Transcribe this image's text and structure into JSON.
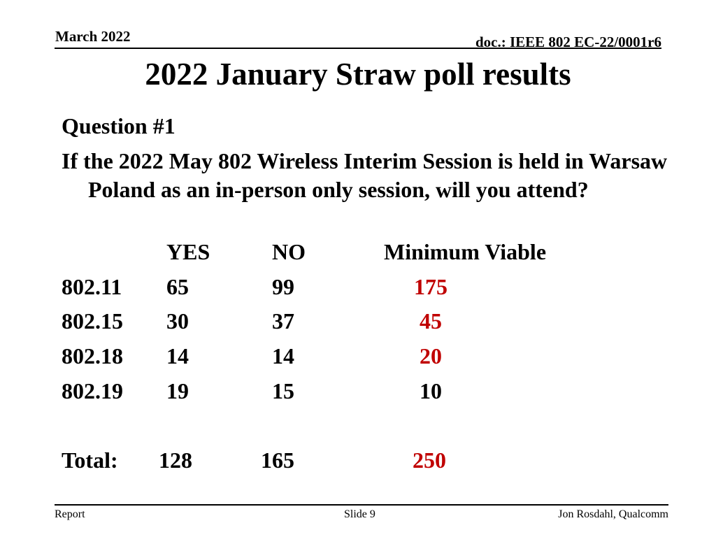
{
  "header": {
    "date": "March 2022",
    "doc_id": "doc.: IEEE 802 EC-22/0001r6"
  },
  "title": "2022 January Straw poll results",
  "question": {
    "label": "Question #1",
    "text": "If the 2022 May 802 Wireless Interim Session is held in Warsaw Poland as an in-person only session, will you attend?"
  },
  "table": {
    "columns": [
      "YES",
      "NO",
      "Minimum Viable"
    ],
    "rows": [
      {
        "group": "802.11",
        "yes": "65",
        "no": "99",
        "min_viable": "175"
      },
      {
        "group": "802.15",
        "yes": "30",
        "no": "37",
        "min_viable": "45"
      },
      {
        "group": "802.18",
        "yes": "14",
        "no": "14",
        "min_viable": "20"
      },
      {
        "group": "802.19",
        "yes": "19",
        "no": "15",
        "min_viable": "10"
      }
    ],
    "total": {
      "label": "Total:",
      "yes": "128",
      "no": "165",
      "min_viable": "250"
    }
  },
  "footer": {
    "left": "Report",
    "center": "Slide 9",
    "right": "Jon Rosdahl, Qualcomm"
  },
  "colors": {
    "highlight": "#c00000",
    "text": "#000000"
  }
}
